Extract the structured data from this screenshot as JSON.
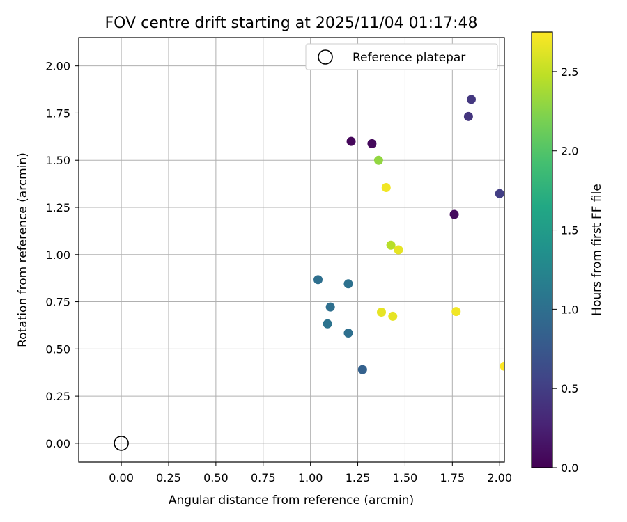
{
  "chart_data": {
    "type": "scatter",
    "title": "FOV centre drift starting at 2025/11/04 01:17:48",
    "xlabel": "Angular distance from reference (arcmin)",
    "ylabel": "Rotation from reference (arcmin)",
    "xlim": [
      -0.225,
      2.025
    ],
    "ylim": [
      -0.1,
      2.15
    ],
    "xticks": [
      "0.00",
      "0.25",
      "0.50",
      "0.75",
      "1.00",
      "1.25",
      "1.50",
      "1.75",
      "2.00"
    ],
    "yticks": [
      "0.00",
      "0.25",
      "0.50",
      "0.75",
      "1.00",
      "1.25",
      "1.50",
      "1.75",
      "2.00"
    ],
    "grid": true,
    "legend": {
      "placement": "top-right",
      "entries": [
        "Reference platepar"
      ]
    },
    "reference": {
      "x": 0.0,
      "y": 0.0,
      "label": "Reference platepar"
    },
    "colorbar": {
      "label": "Hours from first FF file",
      "colormap": "viridis",
      "range": [
        0.0,
        2.75
      ],
      "ticks": [
        "0.0",
        "0.5",
        "1.0",
        "1.5",
        "2.0",
        "2.5"
      ]
    },
    "points": [
      {
        "x": 1.215,
        "y": 1.6,
        "c": 0.05
      },
      {
        "x": 1.325,
        "y": 1.588,
        "c": 0.07
      },
      {
        "x": 1.76,
        "y": 1.213,
        "c": 0.08
      },
      {
        "x": 1.85,
        "y": 1.822,
        "c": 0.45
      },
      {
        "x": 1.835,
        "y": 1.732,
        "c": 0.42
      },
      {
        "x": 2.0,
        "y": 1.323,
        "c": 0.5
      },
      {
        "x": 1.275,
        "y": 0.39,
        "c": 0.85
      },
      {
        "x": 1.2,
        "y": 0.584,
        "c": 1.0
      },
      {
        "x": 1.04,
        "y": 0.867,
        "c": 1.0
      },
      {
        "x": 1.2,
        "y": 0.845,
        "c": 1.02
      },
      {
        "x": 1.105,
        "y": 0.722,
        "c": 1.0
      },
      {
        "x": 1.09,
        "y": 0.633,
        "c": 1.05
      },
      {
        "x": 1.36,
        "y": 1.5,
        "c": 2.3
      },
      {
        "x": 1.425,
        "y": 1.05,
        "c": 2.45
      },
      {
        "x": 1.465,
        "y": 1.025,
        "c": 2.65
      },
      {
        "x": 1.4,
        "y": 1.355,
        "c": 2.7
      },
      {
        "x": 1.375,
        "y": 0.695,
        "c": 2.65
      },
      {
        "x": 1.435,
        "y": 0.673,
        "c": 2.65
      },
      {
        "x": 1.77,
        "y": 0.698,
        "c": 2.7
      },
      {
        "x": 2.025,
        "y": 0.408,
        "c": 2.75
      }
    ]
  }
}
